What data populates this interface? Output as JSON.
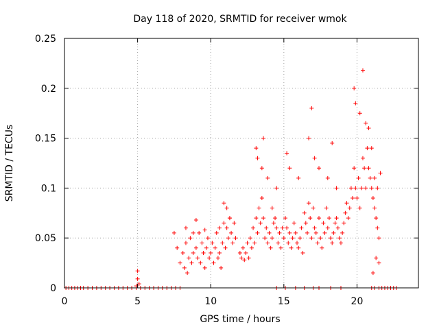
{
  "chart_data": {
    "type": "scatter",
    "title": "Day 118 of 2020, SRMTID for receiver wmok",
    "xlabel": "GPS time / hours",
    "ylabel": "SRMTID / TECUs",
    "xlim": [
      0,
      24.2
    ],
    "ylim": [
      0,
      0.25
    ],
    "xticks": [
      0,
      5,
      10,
      15,
      20
    ],
    "xtick_labels": [
      "0",
      "5",
      "10",
      "15",
      "20"
    ],
    "yticks": [
      0,
      0.05,
      0.1,
      0.15,
      0.2,
      0.25
    ],
    "ytick_labels": [
      "0",
      "0.05",
      "0.1",
      "0.15",
      "0.2",
      "0.25"
    ],
    "grid": true,
    "marker": "+",
    "series": [
      {
        "name": "SRMTID",
        "color": "#ff0000",
        "points": [
          [
            0.1,
            0
          ],
          [
            0.3,
            0
          ],
          [
            0.5,
            0
          ],
          [
            0.7,
            0
          ],
          [
            0.9,
            0
          ],
          [
            1.1,
            0
          ],
          [
            1.3,
            0
          ],
          [
            1.6,
            0
          ],
          [
            1.9,
            0
          ],
          [
            2.2,
            0
          ],
          [
            2.5,
            0
          ],
          [
            2.8,
            0
          ],
          [
            3.1,
            0
          ],
          [
            3.4,
            0
          ],
          [
            3.7,
            0
          ],
          [
            4.0,
            0
          ],
          [
            4.3,
            0
          ],
          [
            4.6,
            0
          ],
          [
            4.9,
            0
          ],
          [
            5.2,
            0
          ],
          [
            5.5,
            0
          ],
          [
            5.8,
            0
          ],
          [
            6.1,
            0
          ],
          [
            6.4,
            0
          ],
          [
            6.7,
            0
          ],
          [
            7.0,
            0
          ],
          [
            7.3,
            0
          ],
          [
            7.6,
            0
          ],
          [
            7.9,
            0
          ],
          [
            5.0,
            0.017
          ],
          [
            5.0,
            0.009
          ],
          [
            5.1,
            0.004
          ],
          [
            4.9,
            0.002
          ],
          [
            7.5,
            0.055
          ],
          [
            7.7,
            0.04
          ],
          [
            7.9,
            0.025
          ],
          [
            8.1,
            0.035
          ],
          [
            8.2,
            0.02
          ],
          [
            8.3,
            0.045
          ],
          [
            8.4,
            0.015
          ],
          [
            8.5,
            0.03
          ],
          [
            8.6,
            0.05
          ],
          [
            8.7,
            0.025
          ],
          [
            8.8,
            0.035
          ],
          [
            9.0,
            0.04
          ],
          [
            9.1,
            0.03
          ],
          [
            9.2,
            0.055
          ],
          [
            9.3,
            0.025
          ],
          [
            9.4,
            0.045
          ],
          [
            9.5,
            0.035
          ],
          [
            9.6,
            0.02
          ],
          [
            9.7,
            0.04
          ],
          [
            9.8,
            0.05
          ],
          [
            9.9,
            0.03
          ],
          [
            10.0,
            0.035
          ],
          [
            10.1,
            0.045
          ],
          [
            10.2,
            0.025
          ],
          [
            10.3,
            0.04
          ],
          [
            10.4,
            0.055
          ],
          [
            10.5,
            0.03
          ],
          [
            10.6,
            0.035
          ],
          [
            10.7,
            0.02
          ],
          [
            10.8,
            0.045
          ],
          [
            10.9,
            0.065
          ],
          [
            11.0,
            0.04
          ],
          [
            11.1,
            0.06
          ],
          [
            11.2,
            0.05
          ],
          [
            11.3,
            0.07
          ],
          [
            11.4,
            0.055
          ],
          [
            11.5,
            0.045
          ],
          [
            11.6,
            0.065
          ],
          [
            11.7,
            0.05
          ],
          [
            8.3,
            0.06
          ],
          [
            8.8,
            0.055
          ],
          [
            9.0,
            0.068
          ],
          [
            9.6,
            0.058
          ],
          [
            10.6,
            0.06
          ],
          [
            10.9,
            0.085
          ],
          [
            11.1,
            0.08
          ],
          [
            11.3,
            0.07
          ],
          [
            12.0,
            0.035
          ],
          [
            12.1,
            0.03
          ],
          [
            12.2,
            0.04
          ],
          [
            12.3,
            0.028
          ],
          [
            12.4,
            0.035
          ],
          [
            12.5,
            0.045
          ],
          [
            12.6,
            0.03
          ],
          [
            12.7,
            0.05
          ],
          [
            12.8,
            0.04
          ],
          [
            12.9,
            0.06
          ],
          [
            13.0,
            0.045
          ],
          [
            13.1,
            0.07
          ],
          [
            13.2,
            0.055
          ],
          [
            13.3,
            0.08
          ],
          [
            13.4,
            0.065
          ],
          [
            13.5,
            0.09
          ],
          [
            13.6,
            0.07
          ],
          [
            13.7,
            0.05
          ],
          [
            13.8,
            0.06
          ],
          [
            13.9,
            0.045
          ],
          [
            14.0,
            0.055
          ],
          [
            14.1,
            0.04
          ],
          [
            14.2,
            0.05
          ],
          [
            14.3,
            0.065
          ],
          [
            14.4,
            0.07
          ],
          [
            14.5,
            0.06
          ],
          [
            14.6,
            0.045
          ],
          [
            14.7,
            0.055
          ],
          [
            14.8,
            0.04
          ],
          [
            14.9,
            0.06
          ],
          [
            15.0,
            0.05
          ],
          [
            15.1,
            0.07
          ],
          [
            15.2,
            0.06
          ],
          [
            15.3,
            0.045
          ],
          [
            15.4,
            0.055
          ],
          [
            15.5,
            0.04
          ],
          [
            15.6,
            0.05
          ],
          [
            15.7,
            0.065
          ],
          [
            15.8,
            0.055
          ],
          [
            15.9,
            0.045
          ],
          [
            16.0,
            0.04
          ],
          [
            16.1,
            0.05
          ],
          [
            16.2,
            0.06
          ],
          [
            16.3,
            0.035
          ],
          [
            16.4,
            0.075
          ],
          [
            16.5,
            0.065
          ],
          [
            16.6,
            0.055
          ],
          [
            16.7,
            0.085
          ],
          [
            16.8,
            0.07
          ],
          [
            16.9,
            0.05
          ],
          [
            17.0,
            0.08
          ],
          [
            17.1,
            0.06
          ],
          [
            17.2,
            0.055
          ],
          [
            17.3,
            0.045
          ],
          [
            17.4,
            0.07
          ],
          [
            17.5,
            0.05
          ],
          [
            17.6,
            0.04
          ],
          [
            17.7,
            0.065
          ],
          [
            17.8,
            0.055
          ],
          [
            17.9,
            0.08
          ],
          [
            18.0,
            0.06
          ],
          [
            18.1,
            0.07
          ],
          [
            18.2,
            0.05
          ],
          [
            18.3,
            0.045
          ],
          [
            18.4,
            0.055
          ],
          [
            18.5,
            0.065
          ],
          [
            18.6,
            0.07
          ],
          [
            18.7,
            0.06
          ],
          [
            18.8,
            0.05
          ],
          [
            18.9,
            0.045
          ],
          [
            19.0,
            0.055
          ],
          [
            19.1,
            0.065
          ],
          [
            19.2,
            0.075
          ],
          [
            19.3,
            0.085
          ],
          [
            19.4,
            0.07
          ],
          [
            19.5,
            0.08
          ],
          [
            19.6,
            0.1
          ],
          [
            19.7,
            0.09
          ],
          [
            19.8,
            0.12
          ],
          [
            19.9,
            0.1
          ],
          [
            20.0,
            0.09
          ],
          [
            20.1,
            0.11
          ],
          [
            20.2,
            0.08
          ],
          [
            20.3,
            0.1
          ],
          [
            20.4,
            0.13
          ],
          [
            20.5,
            0.12
          ],
          [
            20.6,
            0.1
          ],
          [
            20.7,
            0.14
          ],
          [
            20.8,
            0.12
          ],
          [
            20.9,
            0.11
          ],
          [
            21.0,
            0.1
          ],
          [
            21.1,
            0.09
          ],
          [
            21.2,
            0.08
          ],
          [
            21.3,
            0.07
          ],
          [
            21.4,
            0.06
          ],
          [
            21.5,
            0.05
          ],
          [
            13.1,
            0.14
          ],
          [
            13.2,
            0.13
          ],
          [
            13.6,
            0.15
          ],
          [
            13.5,
            0.12
          ],
          [
            13.9,
            0.11
          ],
          [
            14.2,
            0.08
          ],
          [
            14.5,
            0.1
          ],
          [
            15.2,
            0.135
          ],
          [
            15.4,
            0.12
          ],
          [
            16.0,
            0.11
          ],
          [
            16.7,
            0.15
          ],
          [
            16.9,
            0.18
          ],
          [
            17.1,
            0.13
          ],
          [
            17.4,
            0.12
          ],
          [
            18.0,
            0.11
          ],
          [
            18.3,
            0.145
          ],
          [
            18.6,
            0.1
          ],
          [
            19.8,
            0.2
          ],
          [
            19.9,
            0.185
          ],
          [
            20.2,
            0.175
          ],
          [
            20.4,
            0.218
          ],
          [
            20.6,
            0.165
          ],
          [
            20.8,
            0.16
          ],
          [
            21.0,
            0.14
          ],
          [
            21.2,
            0.11
          ],
          [
            21.4,
            0.1
          ],
          [
            21.6,
            0.115
          ],
          [
            21.3,
            0.03
          ],
          [
            21.5,
            0.025
          ],
          [
            21.1,
            0.015
          ],
          [
            14.5,
            0
          ],
          [
            15.1,
            0
          ],
          [
            15.8,
            0
          ],
          [
            16.4,
            0
          ],
          [
            17.0,
            0
          ],
          [
            17.4,
            0
          ],
          [
            18.2,
            0
          ],
          [
            18.9,
            0
          ],
          [
            21.0,
            0
          ],
          [
            21.2,
            0
          ],
          [
            21.5,
            0
          ],
          [
            21.7,
            0
          ],
          [
            21.9,
            0
          ],
          [
            22.1,
            0
          ],
          [
            22.3,
            0
          ],
          [
            22.5,
            0
          ],
          [
            22.7,
            0
          ]
        ]
      }
    ]
  }
}
